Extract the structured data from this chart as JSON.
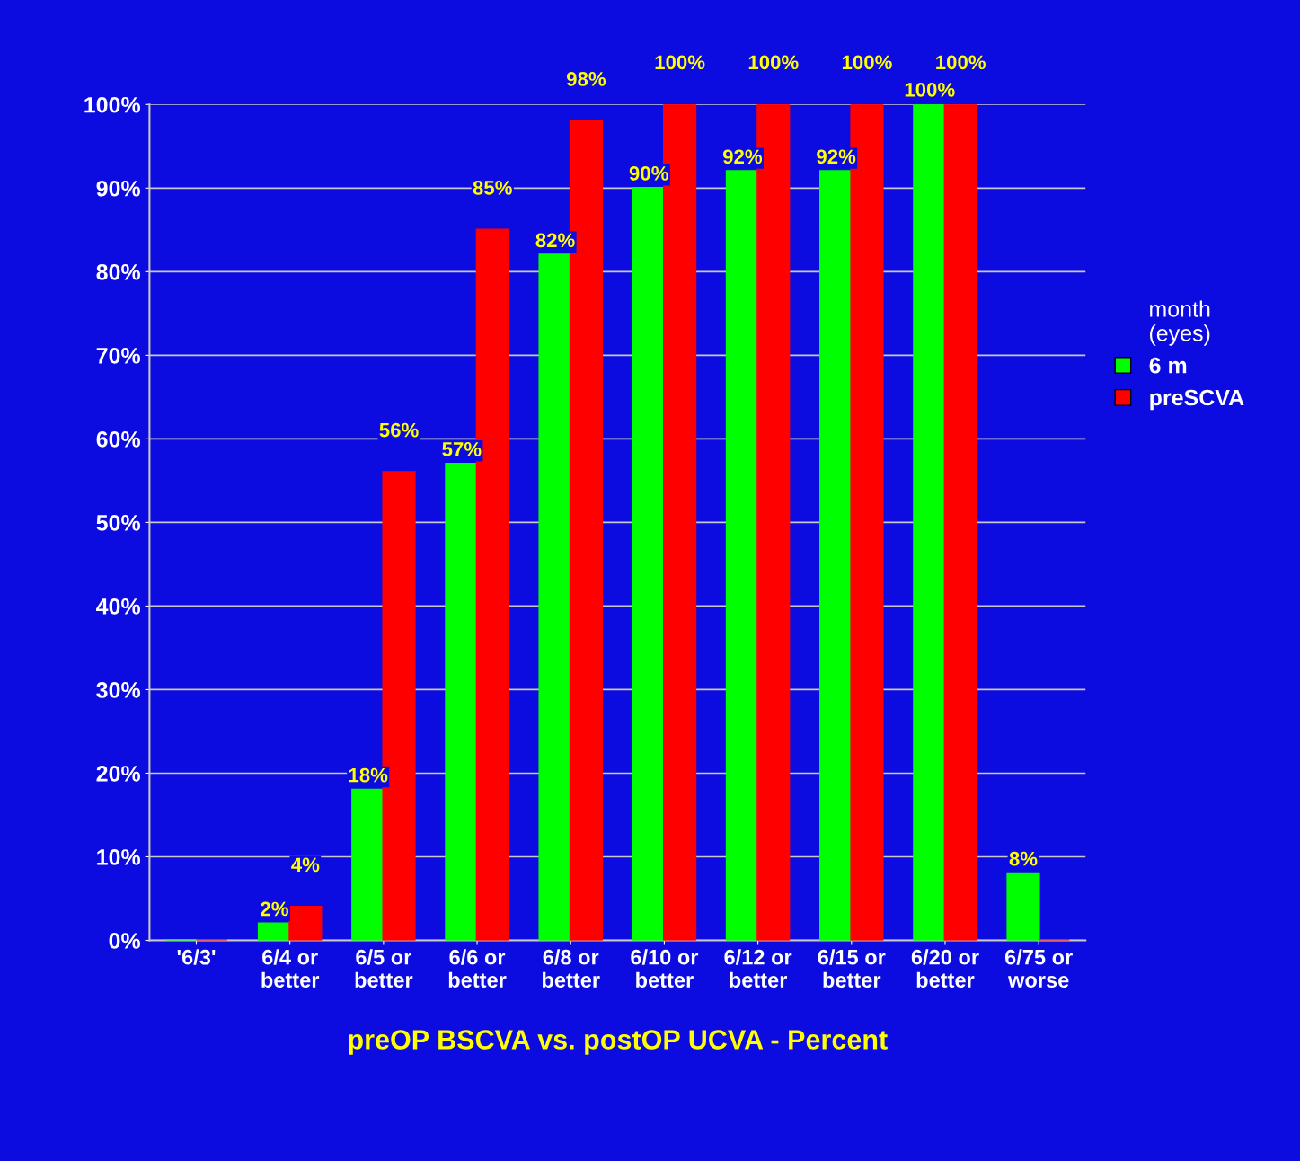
{
  "chart_data": {
    "type": "bar",
    "xlabel": "preOP BSCVA vs. postOP UCVA - Percent",
    "legend_title": "month\n(eyes)",
    "categories": [
      "'6/3'",
      "6/4 or\nbetter",
      "6/5 or\nbetter",
      "6/6 or\nbetter",
      "6/8 or\nbetter",
      "6/10 or\nbetter",
      "6/12 or\nbetter",
      "6/15 or\nbetter",
      "6/20 or\nbetter",
      "6/75 or\nworse"
    ],
    "series": [
      {
        "name": "6 m",
        "color": "#00ff00",
        "values": [
          0,
          2,
          18,
          57,
          82,
          90,
          92,
          92,
          100,
          8
        ],
        "value_labels": [
          null,
          "2%",
          "18%",
          "57%",
          "82%",
          "90%",
          "92%",
          "92%",
          "100%",
          "8%"
        ]
      },
      {
        "name": "preSCVA",
        "color": "#ff0000",
        "values": [
          0,
          4,
          56,
          85,
          98,
          100,
          100,
          100,
          100,
          0
        ],
        "value_labels": [
          null,
          "4%",
          "56%",
          "85%",
          "98%",
          "100%",
          "100%",
          "100%",
          "100%",
          null
        ]
      }
    ],
    "ylim": [
      0,
      100
    ],
    "yticks": [
      {
        "value": 0,
        "label": "0%"
      },
      {
        "value": 10,
        "label": "10%"
      },
      {
        "value": 20,
        "label": "20%"
      },
      {
        "value": 30,
        "label": "30%"
      },
      {
        "value": 40,
        "label": "40%"
      },
      {
        "value": 50,
        "label": "50%"
      },
      {
        "value": 60,
        "label": "60%"
      },
      {
        "value": 70,
        "label": "70%"
      },
      {
        "value": 80,
        "label": "80%"
      },
      {
        "value": 90,
        "label": "90%"
      },
      {
        "value": 100,
        "label": "100%"
      }
    ],
    "grid": "y",
    "legend": "right"
  }
}
